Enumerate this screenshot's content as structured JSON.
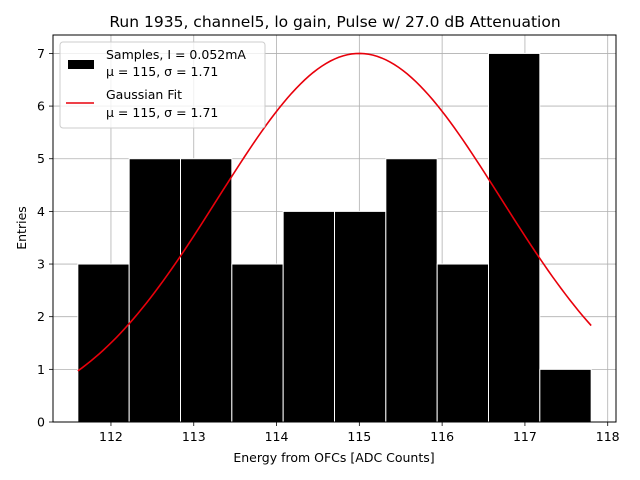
{
  "chart_data": {
    "type": "bar",
    "title": "Run 1935, channel5, lo gain, Pulse w/ 27.0 dB Attenuation",
    "xlabel": "Energy from OFCs [ADC Counts]",
    "ylabel": "Entries",
    "xlim": [
      111.3,
      118.1
    ],
    "ylim": [
      0,
      7.35
    ],
    "xticks": [
      112,
      113,
      114,
      115,
      116,
      117,
      118
    ],
    "yticks": [
      0,
      1,
      2,
      3,
      4,
      5,
      6,
      7
    ],
    "grid": true,
    "legend_position": "top-left",
    "histogram": {
      "name": "Samples, I = 0.052mA",
      "name_line2": "μ = 115, σ = 1.71",
      "color": "#000000",
      "bin_edges": [
        111.6,
        112.22,
        112.84,
        113.46,
        114.08,
        114.7,
        115.32,
        115.94,
        116.56,
        117.18,
        117.8
      ],
      "values": [
        3,
        5,
        5,
        3,
        4,
        4,
        5,
        3,
        7,
        1
      ]
    },
    "fit": {
      "name": "Gaussian Fit",
      "name_line2": "μ = 115, σ = 1.71",
      "color": "#e8000b",
      "amplitude": 7.0,
      "mu": 115.0,
      "sigma": 1.71,
      "x_range": [
        111.6,
        117.8
      ]
    }
  }
}
